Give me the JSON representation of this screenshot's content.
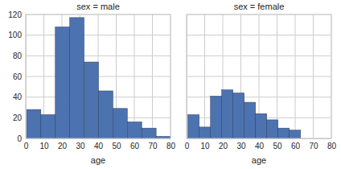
{
  "chart_data": [
    {
      "type": "histogram",
      "title": "sex = male",
      "xlabel": "age",
      "bins": [
        0.42,
        8.38,
        16.34,
        24.3,
        32.26,
        40.22,
        48.18,
        56.14,
        64.1,
        72.06,
        80
      ],
      "values": [
        28,
        23,
        108,
        117,
        74,
        46,
        29,
        16,
        10,
        2
      ],
      "color": "#4c72b0",
      "xlim": [
        0,
        80
      ],
      "xticks": [
        0,
        10,
        20,
        30,
        40,
        50,
        60,
        70,
        80
      ],
      "ylim": [
        0,
        120
      ],
      "yticks": [
        0,
        20,
        40,
        60,
        80,
        100,
        120
      ],
      "grid": true
    },
    {
      "type": "histogram",
      "title": "sex = female",
      "xlabel": "age",
      "bins": [
        0.75,
        6.975,
        13.2,
        19.425,
        25.65,
        31.875,
        38.1,
        44.325,
        50.55,
        56.775,
        63
      ],
      "values": [
        23,
        11,
        41,
        47,
        44,
        35,
        24,
        18,
        10,
        8
      ],
      "color": "#4c72b0",
      "xlim": [
        0,
        80
      ],
      "xticks": [
        0,
        10,
        20,
        30,
        40,
        50,
        60,
        70,
        80
      ],
      "ylim": [
        0,
        120
      ],
      "yticks": [
        0,
        20,
        40,
        60,
        80,
        100,
        120
      ],
      "grid": true,
      "tick_labels": "x"
    }
  ]
}
